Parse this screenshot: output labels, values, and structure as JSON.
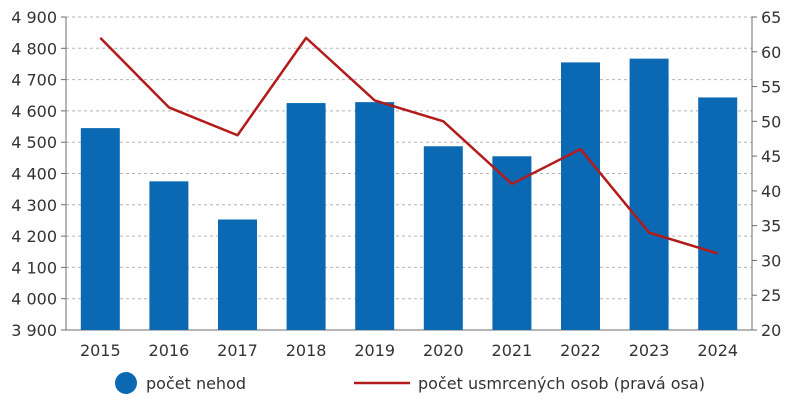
{
  "chart_data": {
    "type": "bar",
    "categories": [
      "2015",
      "2016",
      "2017",
      "2018",
      "2019",
      "2020",
      "2021",
      "2022",
      "2023",
      "2024"
    ],
    "series": [
      {
        "name": "počet nehod",
        "type": "bar",
        "axis": "left",
        "color": "#0b69b4",
        "values": [
          4545,
          4375,
          4253,
          4625,
          4628,
          4487,
          4455,
          4755,
          4767,
          4643
        ]
      },
      {
        "name": "počet usmrcených osob (pravá osa)",
        "type": "line",
        "axis": "right",
        "color": "#b31b1b",
        "values": [
          62,
          52,
          48,
          62,
          53,
          50,
          41,
          46,
          34,
          31
        ]
      }
    ],
    "y_left": {
      "range": [
        3900,
        4900
      ],
      "ticks": [
        3900,
        4000,
        4100,
        4200,
        4300,
        4400,
        4500,
        4600,
        4700,
        4800,
        4900
      ],
      "tick_labels": [
        "3 900",
        "4 000",
        "4 100",
        "4 200",
        "4 300",
        "4 400",
        "4 500",
        "4 600",
        "4 700",
        "4 800",
        "4 900"
      ]
    },
    "y_right": {
      "range": [
        20,
        65
      ],
      "ticks": [
        20,
        25,
        30,
        35,
        40,
        45,
        50,
        55,
        60,
        65
      ],
      "tick_labels": [
        "20",
        "25",
        "30",
        "35",
        "40",
        "45",
        "50",
        "55",
        "60",
        "65"
      ]
    },
    "grid": "horizontal dashed",
    "legend": "bottom"
  }
}
